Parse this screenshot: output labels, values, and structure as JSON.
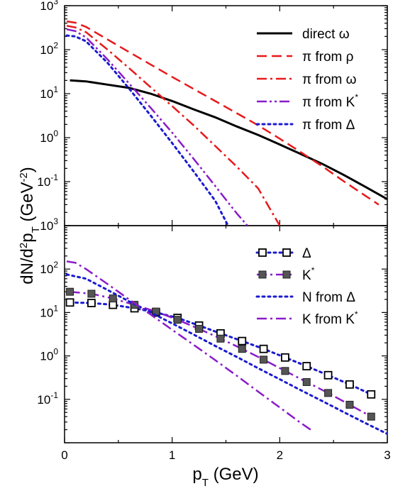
{
  "chart_data": [
    {
      "type": "line",
      "panel": "top",
      "x_range": [
        0,
        3
      ],
      "y_scale": "log",
      "y_range": [
        0.01,
        1000
      ],
      "y_ticks": [
        {
          "base": "10",
          "exp": "-1"
        },
        {
          "base": "10",
          "exp": "0"
        },
        {
          "base": "10",
          "exp": "1"
        },
        {
          "base": "10",
          "exp": "2"
        },
        {
          "base": "10",
          "exp": "3"
        }
      ],
      "bottom_tick_label": {
        "base": "10",
        "exp": "3"
      },
      "grid": false,
      "legend": "top-right",
      "series": [
        {
          "label_main": "direct ω",
          "label_sup": "",
          "color": "#000000",
          "style": "solid",
          "width": 3,
          "x": [
            0.05,
            0.2,
            0.4,
            0.6,
            0.8,
            1.0,
            1.2,
            1.4,
            1.6,
            1.8,
            2.0,
            2.2,
            2.4,
            2.6,
            2.8,
            3.0
          ],
          "y": [
            20,
            19,
            16,
            13.5,
            10,
            6.8,
            4.4,
            2.9,
            1.8,
            1.15,
            0.7,
            0.42,
            0.25,
            0.14,
            0.075,
            0.04
          ]
        },
        {
          "label_main": "π from ρ",
          "label_sup": "",
          "color": "#e8191b",
          "style": "dash",
          "width": 2.5,
          "x": [
            0.02,
            0.1,
            0.2,
            0.4,
            0.6,
            0.8,
            1.0,
            1.2,
            1.4,
            1.6,
            1.8,
            2.0,
            2.2,
            2.4,
            2.6,
            2.8,
            2.92
          ],
          "y": [
            440,
            410,
            330,
            170,
            88,
            46,
            24,
            12.8,
            6.8,
            3.6,
            1.9,
            0.95,
            0.46,
            0.22,
            0.1,
            0.047,
            0.03
          ]
        },
        {
          "label_main": "π from ω",
          "label_sup": "",
          "color": "#e8191b",
          "style": "dashdot",
          "width": 2.5,
          "x": [
            0.02,
            0.1,
            0.2,
            0.4,
            0.6,
            0.8,
            1.0,
            1.2,
            1.4,
            1.6,
            1.8,
            2.0
          ],
          "y": [
            350,
            320,
            250,
            100,
            38,
            14,
            5.2,
            1.9,
            0.65,
            0.22,
            0.07,
            0.01
          ]
        },
        {
          "label_main": "π from K",
          "label_sup": "*",
          "color": "#8a1bc9",
          "style": "dashdotdot",
          "width": 2.5,
          "x": [
            0.02,
            0.1,
            0.2,
            0.4,
            0.6,
            0.8,
            1.0,
            1.2,
            1.4,
            1.6,
            1.7
          ],
          "y": [
            290,
            265,
            190,
            60,
            17,
            4.8,
            1.3,
            0.33,
            0.08,
            0.019,
            0.01
          ]
        },
        {
          "label_main": "π from Δ",
          "label_sup": "",
          "color": "#1b1bd0",
          "style": "dot",
          "width": 3,
          "x": [
            0.02,
            0.1,
            0.2,
            0.4,
            0.6,
            0.8,
            1.0,
            1.2,
            1.4,
            1.52
          ],
          "y": [
            210,
            200,
            155,
            50,
            13,
            3.2,
            0.75,
            0.17,
            0.037,
            0.01
          ]
        }
      ]
    },
    {
      "type": "line",
      "panel": "bottom",
      "x_range": [
        0,
        3
      ],
      "x_ticks": [
        "0",
        "1",
        "2",
        "3"
      ],
      "y_scale": "log",
      "y_range": [
        0.01,
        1000
      ],
      "y_ticks": [
        {
          "base": "10",
          "exp": "-1"
        },
        {
          "base": "10",
          "exp": "0"
        },
        {
          "base": "10",
          "exp": "1"
        },
        {
          "base": "10",
          "exp": "2"
        }
      ],
      "grid": false,
      "legend": "top-right",
      "xlabel": {
        "main": "p",
        "sub": "T",
        "rest": " (GeV)"
      },
      "series": [
        {
          "label_main": "Δ",
          "label_sup": "",
          "color": "#1b1bd0",
          "style": "dot",
          "width": 3,
          "marker": "open-square",
          "x": [
            0.05,
            0.25,
            0.45,
            0.65,
            0.85,
            1.05,
            1.25,
            1.45,
            1.65,
            1.85,
            2.05,
            2.25,
            2.45,
            2.65,
            2.85
          ],
          "y": [
            17,
            16.5,
            15,
            12.5,
            10,
            7.5,
            5,
            3.3,
            2.2,
            1.45,
            0.92,
            0.58,
            0.36,
            0.22,
            0.13
          ]
        },
        {
          "label_main": "K",
          "label_sup": "*",
          "color": "#8a1bc9",
          "style": "dashdot",
          "width": 2.5,
          "marker": "filled-square",
          "x": [
            0.05,
            0.25,
            0.45,
            0.65,
            0.85,
            1.05,
            1.25,
            1.45,
            1.65,
            1.85,
            2.05,
            2.25,
            2.45,
            2.65,
            2.85
          ],
          "y": [
            30,
            27,
            21,
            15,
            10.5,
            6.8,
            4.2,
            2.5,
            1.45,
            0.82,
            0.45,
            0.25,
            0.14,
            0.075,
            0.04
          ]
        },
        {
          "label_main": "N from Δ",
          "label_sup": "",
          "color": "#1b1bd0",
          "style": "dot",
          "width": 3,
          "marker": "",
          "x": [
            0.02,
            0.2,
            0.4,
            0.6,
            0.8,
            1.0,
            1.2,
            1.4,
            1.6,
            1.8,
            2.0,
            2.2,
            2.4,
            2.6,
            2.8,
            3.0
          ],
          "y": [
            75,
            60,
            33,
            18,
            10,
            5.6,
            3.1,
            1.7,
            0.95,
            0.52,
            0.29,
            0.16,
            0.09,
            0.05,
            0.028,
            0.016
          ]
        },
        {
          "label_main": "K from K",
          "label_sup": "*",
          "color": "#8a1bc9",
          "style": "dashdot",
          "width": 2.5,
          "marker": "",
          "x": [
            0.02,
            0.1,
            0.2,
            0.4,
            0.6,
            0.8,
            1.0,
            1.2,
            1.4,
            1.6,
            1.8,
            2.0,
            2.2,
            2.3
          ],
          "y": [
            150,
            140,
            100,
            45,
            20,
            9,
            4,
            1.8,
            0.8,
            0.35,
            0.15,
            0.065,
            0.028,
            0.019
          ]
        }
      ]
    }
  ],
  "ylabel": {
    "p1": "dN/d",
    "sup": "2",
    "p2": "p",
    "sub": "T",
    "p3": " (GeV",
    "sup2": "-2",
    "p4": ")"
  }
}
